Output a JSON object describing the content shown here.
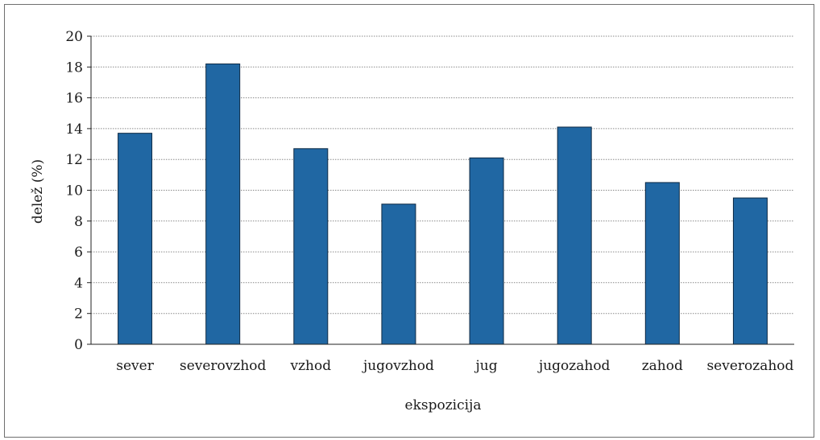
{
  "chart_data": {
    "type": "bar",
    "categories": [
      "sever",
      "severovzhod",
      "vzhod",
      "jugovzhod",
      "jug",
      "jugozahod",
      "zahod",
      "severozahod"
    ],
    "values": [
      13.7,
      18.2,
      12.7,
      9.1,
      12.1,
      14.1,
      10.5,
      9.5
    ],
    "xlabel": "ekspozicija",
    "ylabel": "delež (%)",
    "ylim": [
      0,
      20
    ],
    "yticks": [
      0,
      2,
      4,
      6,
      8,
      10,
      12,
      14,
      16,
      18,
      20
    ],
    "grid": true,
    "legend": "none",
    "colors": {
      "bar_fill": "#2067a3",
      "bar_stroke": "#0e2a44",
      "grid": "#8a8a8a",
      "axis": "#222222",
      "frame": "#6f6f6f"
    }
  }
}
